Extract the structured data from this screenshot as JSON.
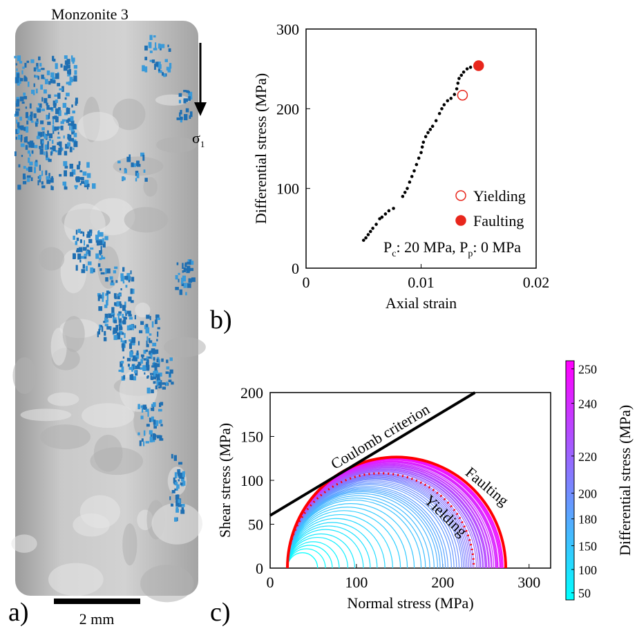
{
  "specimen": {
    "title": "Monzonite 3",
    "stress_symbol": "σ",
    "stress_subscript": "1",
    "scale_label": "2 mm",
    "panel_label": "a)"
  },
  "chart_data": [
    {
      "type": "scatter",
      "panel_label": "b)",
      "xlabel": "Axial strain",
      "ylabel": "Differential stress (MPa)",
      "xlim": [
        0,
        0.02
      ],
      "xticks": [
        0,
        0.01,
        0.02
      ],
      "ylim": [
        0,
        300
      ],
      "yticks": [
        0,
        100,
        200,
        300
      ],
      "color": "#000000",
      "x": [
        0.005,
        0.0052,
        0.0054,
        0.0056,
        0.0058,
        0.0061,
        0.0064,
        0.0066,
        0.0069,
        0.0072,
        0.0076,
        0.0084,
        0.0086,
        0.0088,
        0.009,
        0.0092,
        0.0094,
        0.0096,
        0.0098,
        0.01,
        0.0101,
        0.0102,
        0.0104,
        0.0106,
        0.0108,
        0.011,
        0.0113,
        0.0116,
        0.0118,
        0.012,
        0.0123,
        0.0126,
        0.0129,
        0.0131,
        0.0132,
        0.0133,
        0.0135,
        0.0137,
        0.014,
        0.0143
      ],
      "y": [
        35,
        38,
        42,
        46,
        50,
        55,
        62,
        64,
        68,
        72,
        75,
        90,
        95,
        100,
        108,
        115,
        122,
        130,
        138,
        145,
        152,
        158,
        165,
        170,
        174,
        178,
        185,
        194,
        200,
        205,
        210,
        213,
        218,
        225,
        232,
        238,
        242,
        246,
        250,
        252
      ],
      "points": [
        {
          "name": "Yielding",
          "x": 0.0136,
          "y": 217,
          "color": "#e8261c",
          "filled": false
        },
        {
          "name": "Faulting",
          "x": 0.015,
          "y": 254,
          "color": "#e8261c",
          "filled": true
        }
      ],
      "annotation": [
        "P",
        "c",
        ": 20 MPa, P",
        "p",
        ": 0 MPa"
      ]
    },
    {
      "type": "mohr",
      "panel_label": "c)",
      "xlabel": "Normal stress (MPa)",
      "ylabel": "Shear stress (MPa)",
      "xlim": [
        0,
        325
      ],
      "xticks": [
        0,
        100,
        200,
        300
      ],
      "ylim": [
        0,
        200
      ],
      "yticks": [
        0,
        50,
        100,
        150,
        200
      ],
      "confining_pressure": 20,
      "differential_stress": [
        35,
        44,
        52,
        60,
        70,
        78,
        88,
        96,
        104,
        113,
        122,
        131,
        139,
        147,
        155,
        160,
        165,
        170,
        174,
        177,
        180,
        183,
        186,
        190,
        193,
        196,
        199,
        202,
        204,
        206,
        208,
        210,
        212,
        214,
        216,
        219,
        221,
        223,
        224,
        226,
        227,
        229,
        230,
        231,
        233,
        234,
        236,
        237,
        239,
        241,
        242,
        243,
        244,
        246,
        247,
        248,
        249,
        250,
        252,
        253
      ],
      "highlight": [
        {
          "name": "Faulting",
          "value": 253,
          "color": "#ff0000",
          "style": "solid"
        },
        {
          "name": "Yielding",
          "value": 216,
          "color": "#ff0000",
          "style": "dotted"
        }
      ],
      "coulomb": {
        "label": "Coulomb criterion",
        "intercept": 60,
        "slope": 0.59,
        "color": "#000000"
      },
      "colorbar": {
        "label": "Differential stress (MPa)",
        "ticks": [
          50,
          100,
          150,
          180,
          200,
          220,
          240,
          250
        ],
        "colormap": "cool"
      }
    }
  ]
}
